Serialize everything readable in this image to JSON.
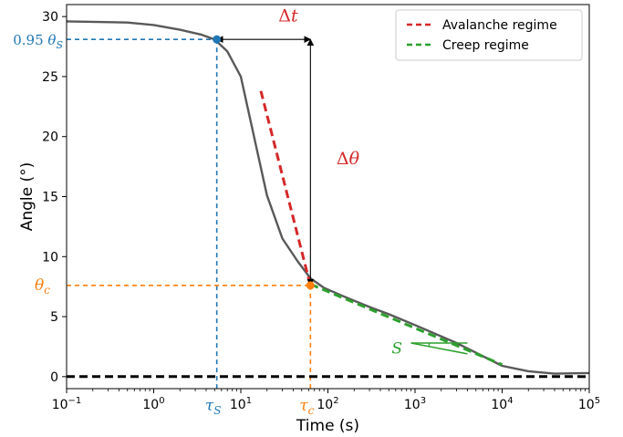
{
  "chart_data": {
    "type": "line",
    "title": "",
    "xlabel": "Time (s)",
    "ylabel": "Angle (°)",
    "xscale": "log",
    "xlim": [
      0.1,
      100000
    ],
    "ylim": [
      -1,
      31
    ],
    "grid": false,
    "legend_position": "top-right",
    "x_tick_labels": [
      {
        "base": "10",
        "exp": "−1"
      },
      {
        "base": "10",
        "exp": "0"
      },
      {
        "base": "10",
        "exp": "1"
      },
      {
        "base": "10",
        "exp": "2"
      },
      {
        "base": "10",
        "exp": "3"
      },
      {
        "base": "10",
        "exp": "4"
      },
      {
        "base": "10",
        "exp": "5"
      }
    ],
    "y_ticks": [
      "0",
      "5",
      "10",
      "15",
      "20",
      "25",
      "30"
    ],
    "series": [
      {
        "color": "#595959",
        "x": [
          0.1,
          0.5,
          1,
          2,
          3.5,
          5,
          7,
          10,
          15,
          20,
          30,
          45,
          63,
          90,
          150,
          300,
          500,
          1000,
          3000,
          10000,
          20000,
          40000,
          100000
        ],
        "y": [
          29.6,
          29.5,
          29.3,
          28.9,
          28.5,
          28.1,
          27.1,
          25.0,
          19.2,
          15.1,
          11.5,
          9.6,
          8.2,
          7.4,
          6.7,
          5.8,
          5.2,
          4.3,
          2.8,
          0.9,
          0.45,
          0.25,
          0.3
        ]
      },
      {
        "name": "Avalanche regime",
        "color": "#d62728",
        "style": "dashed",
        "x": [
          17,
          63
        ],
        "y": [
          23.8,
          7.6
        ]
      },
      {
        "name": "Creep regime",
        "color": "#2ca02c",
        "style": "dashed",
        "x": [
          63,
          10000
        ],
        "y": [
          7.7,
          1.0
        ]
      },
      {
        "color": "#000000",
        "style": "dashed",
        "x": [
          0.1,
          100000
        ],
        "y": [
          0,
          0
        ]
      }
    ],
    "markers": [
      {
        "x": 5.3,
        "y": 28.1,
        "color": "#1f77b4"
      },
      {
        "x": 63,
        "y": 7.6,
        "color": "#ff7f0e"
      }
    ],
    "guides": [
      {
        "type": "horizontal",
        "y": 28.1,
        "x_from": 0.1,
        "x_to": 5.3,
        "color": "#1f77b4"
      },
      {
        "type": "vertical",
        "x": 5.3,
        "y_from": 28.1,
        "y_to": -1,
        "color": "#1f77b4"
      },
      {
        "type": "horizontal",
        "y": 7.6,
        "x_from": 0.1,
        "x_to": 63,
        "color": "#ff7f0e"
      },
      {
        "type": "vertical",
        "x": 63,
        "y_from": 7.6,
        "y_to": -1,
        "color": "#ff7f0e"
      }
    ],
    "arrows": [
      {
        "name": "delta-t",
        "x1": 5.3,
        "y1": 28.1,
        "x2": 63,
        "y2": 28.1,
        "double": true
      },
      {
        "name": "delta-theta",
        "x1": 63,
        "y1": 28.1,
        "x2": 63,
        "y2": 7.6,
        "double": true
      }
    ],
    "slope_triangle": {
      "x1": 900,
      "y1": 2.8,
      "x2": 4000,
      "y2": 1.9,
      "color": "#2ca02c"
    },
    "annotations": {
      "delta_t": {
        "symbol": "Δ",
        "var": "t",
        "color": "#d62728",
        "x": 35,
        "y": 29.6
      },
      "delta_theta": {
        "symbol": "Δ",
        "var": "θ",
        "color": "#d62728",
        "x": 170,
        "y": 17.7
      },
      "slope_label": {
        "text": "S",
        "color": "#2ca02c",
        "x": 620,
        "y": 2.4
      },
      "theta_s_label": {
        "prefix": "0.95",
        "var": "θ",
        "sub": "S",
        "color": "#1f77b4"
      },
      "theta_c_label": {
        "var": "θ",
        "sub": "c",
        "color": "#ff7f0e"
      },
      "tau_s_label": {
        "var": "τ",
        "sub": "S",
        "color": "#1f77b4"
      },
      "tau_c_label": {
        "var": "τ",
        "sub": "c",
        "color": "#ff7f0e"
      }
    }
  }
}
